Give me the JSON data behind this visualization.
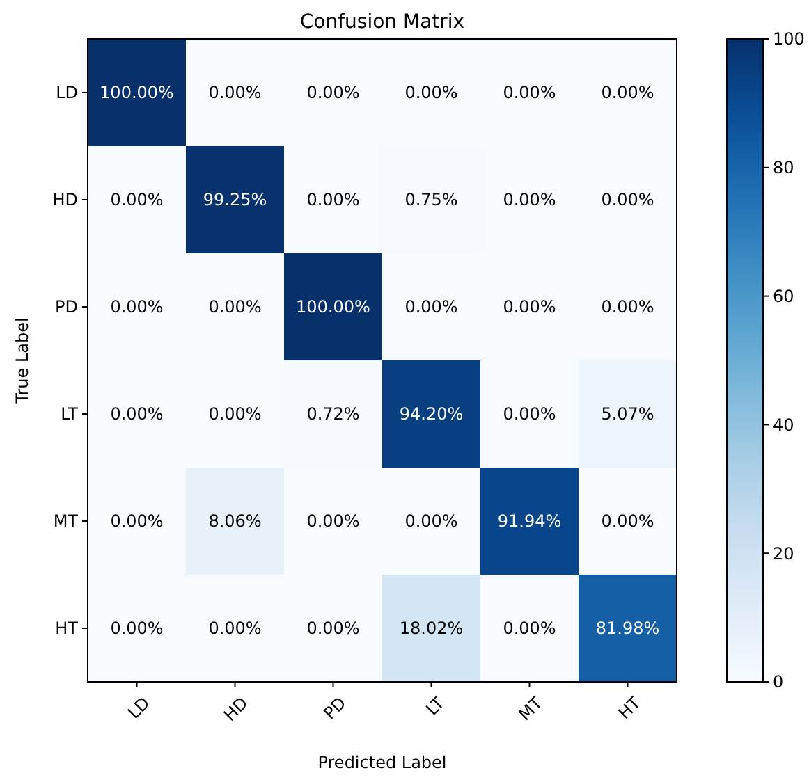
{
  "chart_data": {
    "type": "heatmap",
    "title": "Confusion Matrix",
    "xlabel": "Predicted Label",
    "ylabel": "True Label",
    "categories": [
      "LD",
      "HD",
      "PD",
      "LT",
      "MT",
      "HT"
    ],
    "y_categories": [
      "LD",
      "HD",
      "PD",
      "LT",
      "MT",
      "HT"
    ],
    "cells": [
      [
        100,
        0,
        0,
        0,
        0,
        0
      ],
      [
        0,
        99.25,
        0,
        0.75,
        0,
        0
      ],
      [
        0,
        0,
        100,
        0,
        0,
        0
      ],
      [
        0,
        0,
        0.72,
        94.2,
        0,
        5.07
      ],
      [
        0,
        8.06,
        0,
        0,
        91.94,
        0
      ],
      [
        0,
        0,
        0,
        18.02,
        0,
        81.98
      ]
    ],
    "cell_labels": [
      [
        "100.00%",
        "0.00%",
        "0.00%",
        "0.00%",
        "0.00%",
        "0.00%"
      ],
      [
        "0.00%",
        "99.25%",
        "0.00%",
        "0.75%",
        "0.00%",
        "0.00%"
      ],
      [
        "0.00%",
        "0.00%",
        "100.00%",
        "0.00%",
        "0.00%",
        "0.00%"
      ],
      [
        "0.00%",
        "0.00%",
        "0.72%",
        "94.20%",
        "0.00%",
        "5.07%"
      ],
      [
        "0.00%",
        "8.06%",
        "0.00%",
        "0.00%",
        "91.94%",
        "0.00%"
      ],
      [
        "0.00%",
        "0.00%",
        "0.00%",
        "18.02%",
        "0.00%",
        "81.98%"
      ]
    ],
    "clim": [
      0,
      100
    ],
    "cticks": [
      0,
      20,
      40,
      60,
      80,
      100
    ]
  }
}
